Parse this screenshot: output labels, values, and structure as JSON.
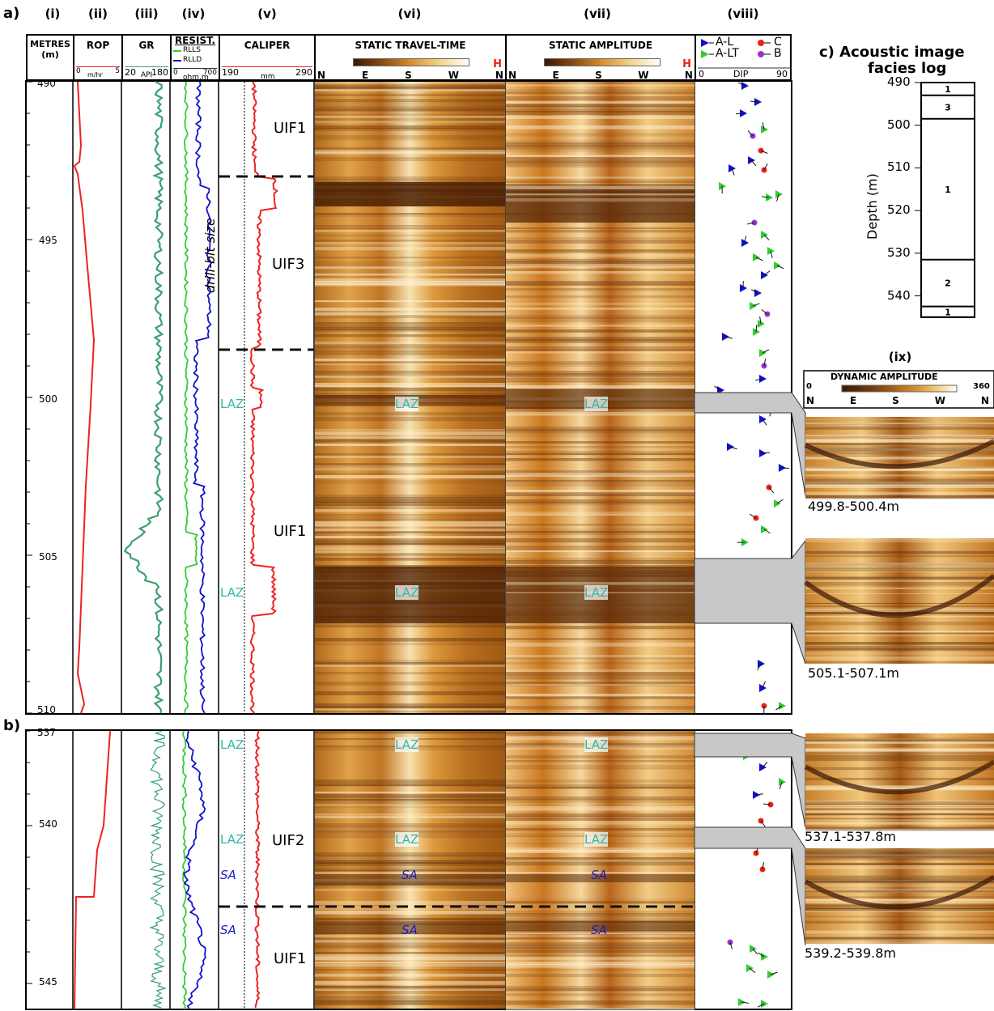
{
  "panels": {
    "a": "a)",
    "b": "b)",
    "c_title_line1": "c) Acoustic image",
    "c_title_line2": "facies log"
  },
  "column_numerals": [
    "(i)",
    "(ii)",
    "(iii)",
    "(iv)",
    "(v)",
    "(vi)",
    "(vii)",
    "(viii)"
  ],
  "ix_label": "(ix)",
  "headers": {
    "depth": {
      "title": "METRES",
      "unit": "(m)"
    },
    "rop": {
      "title": "ROP",
      "min": "0",
      "max": "5",
      "unit": "m/hr"
    },
    "gr": {
      "title": "GR",
      "min": "20",
      "max": "180",
      "unit": "API"
    },
    "resist": {
      "title": "RESIST.",
      "curve1": "RLLS",
      "curve2": "RLLD",
      "min": "0",
      "max": "700",
      "unit": "ohm.m"
    },
    "caliper": {
      "title": "CALIPER",
      "min": "190",
      "max": "290",
      "unit": "mm"
    },
    "travel_time": {
      "title": "STATIC TRAVEL-TIME"
    },
    "amplitude": {
      "title": "STATIC AMPLITUDE"
    },
    "dip": {
      "legend": [
        "A-L",
        "A-LT",
        "C",
        "B"
      ],
      "min": "0",
      "label": "DIP",
      "max": "90"
    },
    "dynamic": {
      "title": "DYNAMIC AMPLITUDE",
      "min": "0",
      "max": "360"
    },
    "azimuth": [
      "N",
      "E",
      "S",
      "W",
      "N"
    ],
    "h_mark": "H"
  },
  "depth_ticks_a": [
    "490",
    "495",
    "500",
    "505",
    "510"
  ],
  "depth_ticks_b": [
    "537",
    "540",
    "545"
  ],
  "zones_a": [
    "UIF1",
    "UIF3",
    "UIF1"
  ],
  "zones_b": [
    "UIF2",
    "UIF1"
  ],
  "drill_bit": "drill-bit size",
  "laz": "LAZ",
  "sa": "SA",
  "facies_log": {
    "ylabel": "Depth (m)",
    "ticks": [
      "490",
      "500",
      "510",
      "520",
      "530",
      "540"
    ],
    "units": [
      {
        "label": "1",
        "top": 490,
        "base": 493
      },
      {
        "label": "3",
        "top": 493,
        "base": 498.5
      },
      {
        "label": "1",
        "top": 498.5,
        "base": 531.5
      },
      {
        "label": "2",
        "top": 531.5,
        "base": 542.5
      },
      {
        "label": "1",
        "top": 542.5,
        "base": 545
      }
    ]
  },
  "dynamic_images": [
    "499.8-500.4m",
    "505.1-507.1m",
    "537.1-537.8m",
    "539.2-539.8m"
  ],
  "colors": {
    "rop": "#ee2222",
    "gr": "#3aa070",
    "rlls": "#33cc33",
    "rlld": "#1111cc",
    "caliper": "#ee2222",
    "laz": "#2fb8a8",
    "sa": "#1a1acc",
    "tan": "#d98f2c",
    "dark": "#5a2a08"
  }
}
